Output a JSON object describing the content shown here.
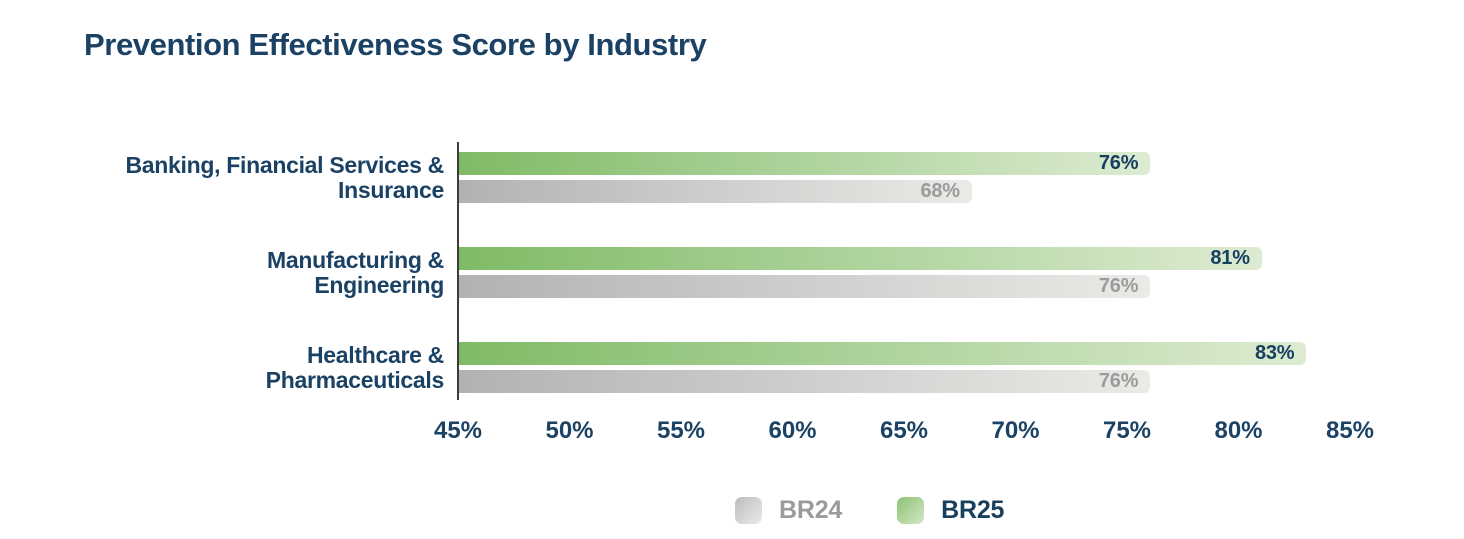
{
  "chart_data": {
    "type": "bar",
    "orientation": "horizontal",
    "title": "Prevention Effectiveness Score by Industry",
    "categories": [
      {
        "name": "Banking, Financial Services & Insurance",
        "lines": [
          "Banking, Financial Services &",
          "Insurance"
        ]
      },
      {
        "name": "Manufacturing & Engineering",
        "lines": [
          "Manufacturing &",
          "Engineering"
        ]
      },
      {
        "name": "Healthcare & Pharmaceuticals",
        "lines": [
          "Healthcare &",
          "Pharmaceuticals"
        ]
      }
    ],
    "series": [
      {
        "name": "BR25",
        "values": [
          76,
          81,
          83
        ],
        "value_labels": [
          "76%",
          "81%",
          "83%"
        ],
        "bar_color_start": "#7fbb66",
        "bar_color_end": "#ddebd2",
        "value_label_color": "#173f60"
      },
      {
        "name": "BR24",
        "values": [
          68,
          76,
          76
        ],
        "value_labels": [
          "68%",
          "76%",
          "76%"
        ],
        "bar_color_start": "#b2b2b2",
        "bar_color_end": "#eceae7",
        "value_label_color": "#9a9c9b"
      }
    ],
    "axis": {
      "min": 45,
      "max": 85,
      "tick_values": [
        45,
        50,
        55,
        60,
        65,
        70,
        75,
        80,
        85
      ],
      "tick_labels": [
        "45%",
        "50%",
        "55%",
        "60%",
        "65%",
        "70%",
        "75%",
        "80%",
        "85%"
      ]
    },
    "legend": {
      "position": "bottom",
      "items": [
        {
          "label": "BR24",
          "swatch_start": "#bcbcbc",
          "swatch_end": "#ebebeb",
          "text_color": "#9a9c9b"
        },
        {
          "label": "BR25",
          "swatch_start": "#8dc173",
          "swatch_end": "#d3e6c5",
          "text_color": "#17405e"
        }
      ]
    },
    "colors": {
      "title": "#1b4264",
      "tick": "#1b4264",
      "axis_line": "#3c3c3c",
      "background": "#ffffff"
    },
    "grid": "off"
  }
}
